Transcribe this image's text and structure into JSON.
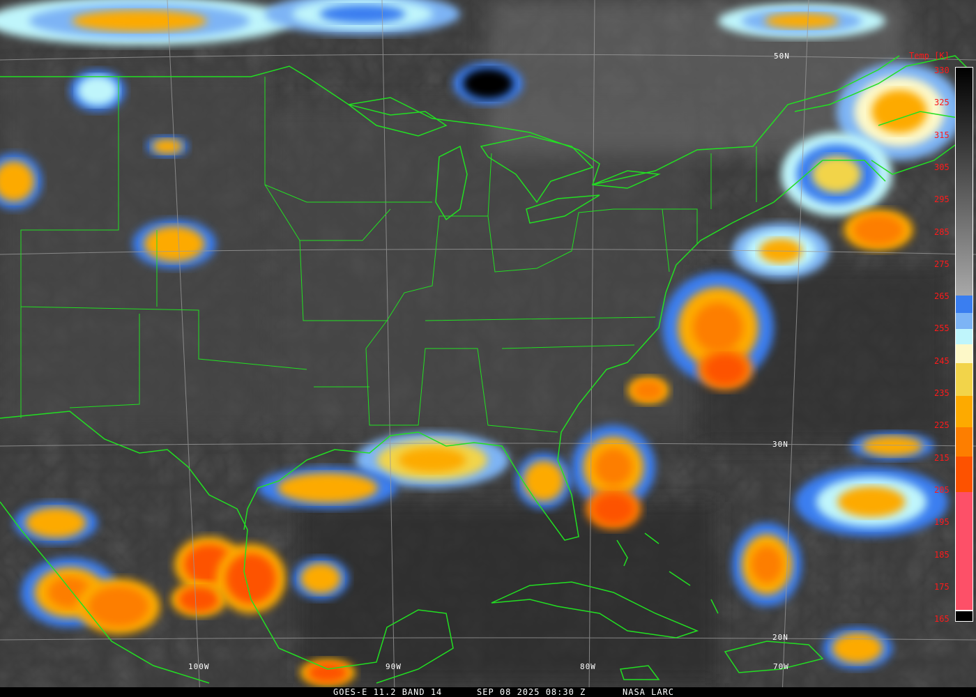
{
  "colorbar": {
    "title": "Temp [K]",
    "labels": [
      "330",
      "325",
      "315",
      "305",
      "295",
      "285",
      "275",
      "265",
      "255",
      "245",
      "235",
      "225",
      "215",
      "205",
      "195",
      "185",
      "175",
      "165"
    ],
    "label_color": "#ff1a1a",
    "segments": [
      {
        "from": "#000000",
        "to": "#a8a8a8"
      },
      {
        "color": "#3a7ef0"
      },
      {
        "color": "#7db4f5"
      },
      {
        "color": "#bff5fb"
      },
      {
        "color": "#fdf8c8"
      },
      {
        "color": "#f2d44a"
      },
      {
        "color": "#fdaa00"
      },
      {
        "color": "#fd7e00"
      },
      {
        "color": "#fd5200"
      },
      {
        "color": "#fd5068"
      }
    ]
  },
  "grid": {
    "lat_labels": [
      "50N",
      "30N",
      "20N"
    ],
    "lon_labels": [
      "100W",
      "90W",
      "80W",
      "70W"
    ]
  },
  "footer": {
    "product": "GOES-E 11.2 BAND 14",
    "datetime": "SEP 08 2025 08:30 Z",
    "source": "NASA LARC"
  },
  "colors": {
    "border": "#22e022",
    "grid": "#9a9a9a",
    "background": "#3c3c3c"
  }
}
